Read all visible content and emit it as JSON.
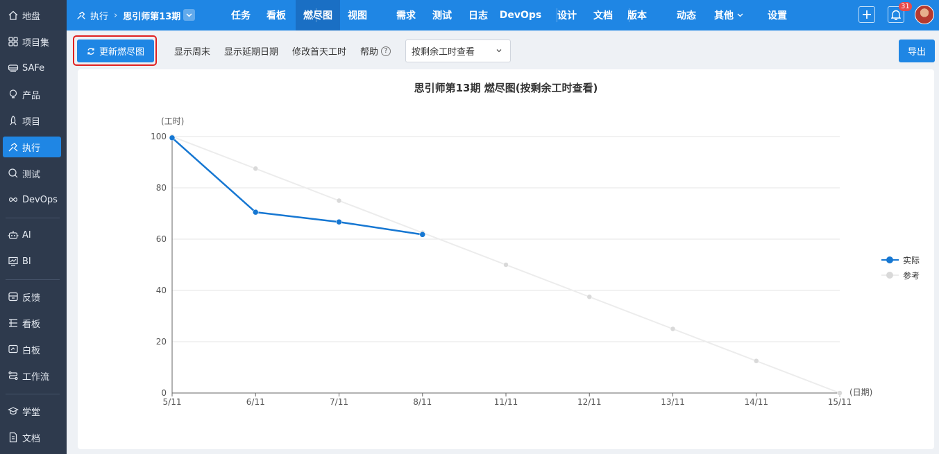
{
  "sidebar": {
    "items": [
      {
        "label": "地盘",
        "icon": "home-icon"
      },
      {
        "label": "项目集",
        "icon": "grid-icon"
      },
      {
        "label": "SAFe",
        "icon": "train-icon"
      },
      {
        "label": "产品",
        "icon": "bulb-icon"
      },
      {
        "label": "项目",
        "icon": "rocket-icon"
      },
      {
        "label": "执行",
        "icon": "run-icon"
      },
      {
        "label": "测试",
        "icon": "search-icon"
      },
      {
        "label": "DevOps",
        "icon": "infinity-icon"
      },
      {
        "label": "AI",
        "icon": "robot-icon"
      },
      {
        "label": "BI",
        "icon": "chart-icon"
      },
      {
        "label": "反馈",
        "icon": "feedback-icon"
      },
      {
        "label": "看板",
        "icon": "board-icon"
      },
      {
        "label": "白板",
        "icon": "whiteboard-icon"
      },
      {
        "label": "工作流",
        "icon": "workflow-icon"
      },
      {
        "label": "学堂",
        "icon": "school-icon"
      },
      {
        "label": "文档",
        "icon": "doc-icon"
      }
    ],
    "active": "执行"
  },
  "topbar": {
    "breadcrumb_root": "执行",
    "breadcrumb_current": "思引师第13期",
    "nav": [
      "任务",
      "看板",
      "燃尽图",
      "视图",
      "需求",
      "测试",
      "日志",
      "DevOps",
      "设计",
      "文档",
      "版本",
      "动态",
      "其他",
      "设置"
    ],
    "active_nav": "燃尽图",
    "notification_count": "31"
  },
  "toolbar": {
    "refresh_label": "更新燃尽图",
    "show_weekend": "显示周末",
    "show_delay": "显示延期日期",
    "edit_first_day": "修改首天工时",
    "help": "帮助",
    "help_icon_glyph": "?",
    "view_select": "按剩余工时查看",
    "export_label": "导出"
  },
  "chart_data": {
    "type": "line",
    "title": "思引师第13期 燃尽图(按剩余工时查看)",
    "ylabel": "(工时)",
    "xlabel": "(日期)",
    "categories": [
      "5/11",
      "6/11",
      "7/11",
      "8/11",
      "11/11",
      "12/11",
      "13/11",
      "14/11",
      "15/11"
    ],
    "ylim": [
      0,
      100
    ],
    "yticks": [
      0,
      20,
      40,
      60,
      80,
      100
    ],
    "grid": true,
    "legend_position": "right",
    "series": [
      {
        "name": "实际",
        "color": "#1677d2",
        "values": [
          99.5,
          70.5,
          66.7,
          61.8,
          null,
          null,
          null,
          null,
          null
        ]
      },
      {
        "name": "参考",
        "color": "#d9d9d9",
        "values": [
          100,
          87.5,
          75,
          62.5,
          50,
          37.5,
          25,
          12.5,
          0
        ]
      }
    ]
  }
}
